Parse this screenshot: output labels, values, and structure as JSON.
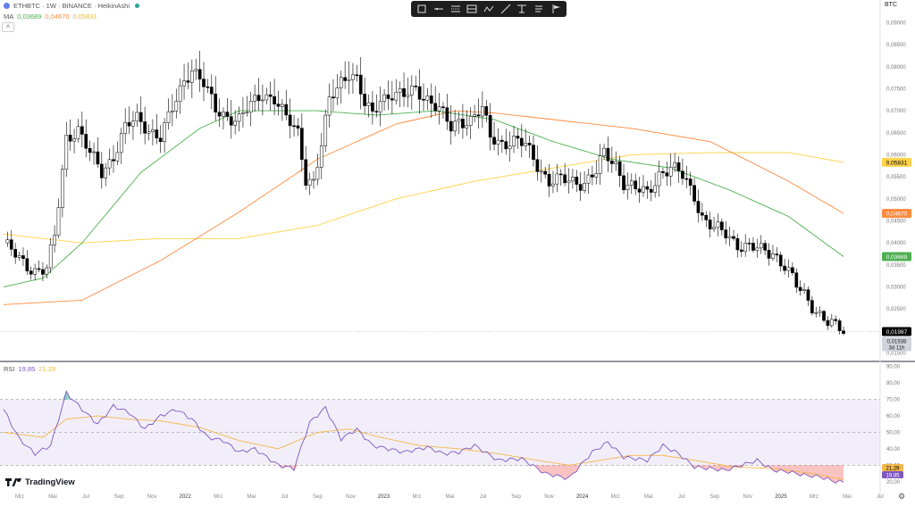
{
  "header": {
    "symbol_title": "ETHBTC · 1W · BINANCE · HeikinAshi",
    "ma_label": "MA",
    "ma_values": [
      "0,03689",
      "0,04670",
      "0,05831"
    ],
    "currency": "BTC",
    "collapse_glyph": "˄"
  },
  "toolbar": {
    "tools": [
      "rectangle-icon",
      "horizontal-line-icon",
      "channel-icon",
      "long-position-icon",
      "path-icon",
      "trend-line-icon",
      "fib-retracement-icon",
      "text-icon",
      "brush-icon"
    ]
  },
  "colors": {
    "ma_short": "#4caf50",
    "ma_mid": "#ff8a3d",
    "ma_long": "#ffd24a",
    "rsi_line": "#7e57c2",
    "rsi_ma": "#f2b84b",
    "candle_down": "#000000",
    "candle_up": "#ffffff",
    "last_price_bg": "#000000"
  },
  "price_axis": {
    "ticks": [
      "0,09000",
      "0,08500",
      "0,08000",
      "0,07500",
      "0,07000",
      "0,06500",
      "0,06000",
      "0,05500",
      "0,05000",
      "0,04500",
      "0,04000",
      "0,03500",
      "0,03000",
      "0,02500",
      "0,02000",
      "0,01500"
    ],
    "labels": [
      {
        "text": "0,05831",
        "value": 0.05831,
        "color": "#ffd24a",
        "text_color": "#000000"
      },
      {
        "text": "0,04670",
        "value": 0.0467,
        "color": "#ff8a3d",
        "text_color": "#ffffff"
      },
      {
        "text": "0,03689",
        "value": 0.03689,
        "color": "#4caf50",
        "text_color": "#ffffff"
      },
      {
        "text": "0,01987",
        "value": 0.01987,
        "color": "#000000",
        "text_color": "#ffffff"
      }
    ],
    "countdown": {
      "price": "0,01938",
      "time": "3d 11h"
    }
  },
  "rsi": {
    "label": "RSI",
    "values": [
      "19,85",
      "21,29"
    ],
    "ticks": [
      "90,00",
      "80,00",
      "70,00",
      "60,00",
      "50,00",
      "40,00",
      "30,00",
      "20,00"
    ],
    "current_labels": [
      {
        "text": "21,29",
        "value": 21.29,
        "color": "#f2b84b",
        "text_color": "#000000"
      },
      {
        "text": "19,85",
        "value": 19.85,
        "color": "#7e57c2",
        "text_color": "#ffffff"
      }
    ]
  },
  "time_axis": {
    "labels": [
      "Mrz",
      "Mai",
      "Jul",
      "Sep",
      "Nov",
      "2022",
      "Mrz",
      "Mai",
      "Jul",
      "Sep",
      "Nov",
      "2023",
      "Mrz",
      "Mai",
      "Jul",
      "Sep",
      "Nov",
      "2024",
      "Mrz",
      "Mai",
      "Jul",
      "Sep",
      "Nov",
      "2025",
      "Mrz",
      "Mai",
      "Jul"
    ]
  },
  "branding": {
    "logo_text": "TradingView"
  },
  "chart_data": {
    "type": "candlestick",
    "price_range": [
      0.0135,
      0.0915
    ],
    "rsi_range": [
      15,
      92
    ],
    "ohlc_anchors": [
      [
        0,
        0.04
      ],
      [
        4,
        0.036
      ],
      [
        8,
        0.034
      ],
      [
        11,
        0.034
      ],
      [
        13,
        0.041
      ],
      [
        16,
        0.064
      ],
      [
        19,
        0.066
      ],
      [
        22,
        0.06
      ],
      [
        25,
        0.056
      ],
      [
        28,
        0.06
      ],
      [
        31,
        0.066
      ],
      [
        34,
        0.068
      ],
      [
        37,
        0.066
      ],
      [
        40,
        0.064
      ],
      [
        43,
        0.07
      ],
      [
        46,
        0.077
      ],
      [
        48,
        0.08
      ],
      [
        51,
        0.076
      ],
      [
        54,
        0.07
      ],
      [
        57,
        0.069
      ],
      [
        60,
        0.068
      ],
      [
        63,
        0.071
      ],
      [
        66,
        0.074
      ],
      [
        69,
        0.073
      ],
      [
        72,
        0.068
      ],
      [
        75,
        0.065
      ],
      [
        77,
        0.055
      ],
      [
        79,
        0.054
      ],
      [
        81,
        0.062
      ],
      [
        83,
        0.072
      ],
      [
        86,
        0.077
      ],
      [
        88,
        0.079
      ],
      [
        90,
        0.077
      ],
      [
        92,
        0.071
      ],
      [
        94,
        0.069
      ],
      [
        96,
        0.073
      ],
      [
        99,
        0.074
      ],
      [
        102,
        0.073
      ],
      [
        105,
        0.075
      ],
      [
        108,
        0.073
      ],
      [
        111,
        0.07
      ],
      [
        114,
        0.066
      ],
      [
        116,
        0.068
      ],
      [
        119,
        0.068
      ],
      [
        122,
        0.07
      ],
      [
        124,
        0.064
      ],
      [
        127,
        0.063
      ],
      [
        130,
        0.063
      ],
      [
        133,
        0.062
      ],
      [
        136,
        0.058
      ],
      [
        139,
        0.054
      ],
      [
        142,
        0.054
      ],
      [
        145,
        0.054
      ],
      [
        148,
        0.054
      ],
      [
        151,
        0.056
      ],
      [
        153,
        0.06
      ],
      [
        156,
        0.058
      ],
      [
        158,
        0.054
      ],
      [
        161,
        0.052
      ],
      [
        164,
        0.051
      ],
      [
        167,
        0.056
      ],
      [
        170,
        0.057
      ],
      [
        173,
        0.055
      ],
      [
        176,
        0.051
      ],
      [
        178,
        0.046
      ],
      [
        181,
        0.043
      ],
      [
        184,
        0.042
      ],
      [
        187,
        0.04
      ],
      [
        190,
        0.039
      ],
      [
        193,
        0.038
      ],
      [
        196,
        0.038
      ],
      [
        199,
        0.035
      ],
      [
        202,
        0.03
      ],
      [
        204,
        0.028
      ],
      [
        206,
        0.026
      ],
      [
        208,
        0.024
      ],
      [
        210,
        0.022
      ],
      [
        212,
        0.0205
      ],
      [
        214,
        0.0199
      ]
    ],
    "ma_short": [
      [
        0,
        0.03
      ],
      [
        10,
        0.032
      ],
      [
        20,
        0.04
      ],
      [
        35,
        0.056
      ],
      [
        50,
        0.066
      ],
      [
        60,
        0.07
      ],
      [
        70,
        0.07
      ],
      [
        80,
        0.07
      ],
      [
        95,
        0.069
      ],
      [
        110,
        0.07
      ],
      [
        125,
        0.068
      ],
      [
        140,
        0.063
      ],
      [
        155,
        0.059
      ],
      [
        170,
        0.057
      ],
      [
        185,
        0.052
      ],
      [
        200,
        0.046
      ],
      [
        214,
        0.0369
      ]
    ],
    "ma_mid": [
      [
        0,
        0.026
      ],
      [
        20,
        0.027
      ],
      [
        40,
        0.036
      ],
      [
        60,
        0.047
      ],
      [
        80,
        0.059
      ],
      [
        100,
        0.067
      ],
      [
        115,
        0.07
      ],
      [
        125,
        0.0695
      ],
      [
        140,
        0.068
      ],
      [
        160,
        0.066
      ],
      [
        180,
        0.063
      ],
      [
        200,
        0.054
      ],
      [
        214,
        0.0467
      ]
    ],
    "ma_long": [
      [
        0,
        0.042
      ],
      [
        20,
        0.04
      ],
      [
        40,
        0.041
      ],
      [
        60,
        0.041
      ],
      [
        80,
        0.044
      ],
      [
        100,
        0.05
      ],
      [
        120,
        0.054
      ],
      [
        140,
        0.057
      ],
      [
        160,
        0.06
      ],
      [
        180,
        0.0605
      ],
      [
        200,
        0.0605
      ],
      [
        214,
        0.0583
      ]
    ],
    "rsi_line": [
      [
        0,
        64
      ],
      [
        4,
        46
      ],
      [
        8,
        37
      ],
      [
        12,
        42
      ],
      [
        16,
        74
      ],
      [
        20,
        64
      ],
      [
        24,
        55
      ],
      [
        28,
        66
      ],
      [
        32,
        62
      ],
      [
        36,
        52
      ],
      [
        40,
        60
      ],
      [
        44,
        64
      ],
      [
        48,
        58
      ],
      [
        52,
        47
      ],
      [
        56,
        45
      ],
      [
        60,
        38
      ],
      [
        64,
        40
      ],
      [
        70,
        30
      ],
      [
        74,
        28
      ],
      [
        78,
        56
      ],
      [
        82,
        65
      ],
      [
        86,
        46
      ],
      [
        90,
        52
      ],
      [
        94,
        42
      ],
      [
        98,
        40
      ],
      [
        102,
        38
      ],
      [
        108,
        41
      ],
      [
        112,
        37
      ],
      [
        116,
        38
      ],
      [
        120,
        42
      ],
      [
        126,
        33
      ],
      [
        132,
        34
      ],
      [
        138,
        25
      ],
      [
        144,
        22
      ],
      [
        150,
        38
      ],
      [
        154,
        44
      ],
      [
        158,
        35
      ],
      [
        164,
        33
      ],
      [
        168,
        42
      ],
      [
        172,
        37
      ],
      [
        176,
        29
      ],
      [
        180,
        28
      ],
      [
        184,
        27
      ],
      [
        188,
        30
      ],
      [
        192,
        33
      ],
      [
        196,
        27
      ],
      [
        200,
        26
      ],
      [
        204,
        24
      ],
      [
        208,
        23
      ],
      [
        212,
        20
      ],
      [
        214,
        19.85
      ]
    ],
    "rsi_ma": [
      [
        0,
        50
      ],
      [
        10,
        47
      ],
      [
        16,
        58
      ],
      [
        24,
        60
      ],
      [
        32,
        58
      ],
      [
        40,
        57
      ],
      [
        50,
        53
      ],
      [
        60,
        45
      ],
      [
        70,
        40
      ],
      [
        80,
        50
      ],
      [
        88,
        52
      ],
      [
        96,
        47
      ],
      [
        106,
        42
      ],
      [
        116,
        40
      ],
      [
        126,
        37
      ],
      [
        136,
        33
      ],
      [
        144,
        30
      ],
      [
        152,
        33
      ],
      [
        160,
        36
      ],
      [
        168,
        36
      ],
      [
        176,
        33
      ],
      [
        186,
        29
      ],
      [
        196,
        28
      ],
      [
        206,
        25
      ],
      [
        214,
        21.29
      ]
    ]
  }
}
